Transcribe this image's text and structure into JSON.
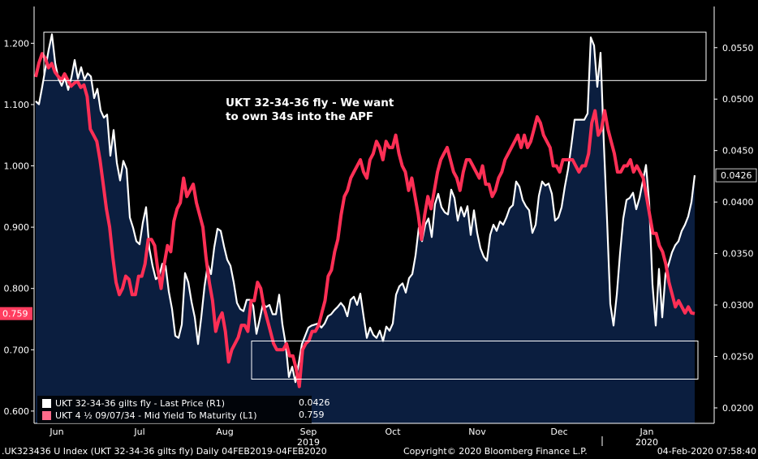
{
  "chart_data": {
    "type": "line",
    "title": "",
    "annotation": "UKT 32-34-36 fly - We want to own 34s into the APF",
    "annotation_lines": [
      "UKT 32-34-36 fly - We want",
      "to own 34s into the APF"
    ],
    "x_tick_labels": [
      "Jun",
      "Jul",
      "Aug",
      "Sep",
      "Oct",
      "Nov",
      "Dec",
      "Jan"
    ],
    "year_labels": [
      "2019",
      "2020"
    ],
    "left_axis": {
      "ylim": [
        0.58,
        1.26
      ],
      "ticks": [
        "0.600",
        "0.700",
        "0.800",
        "0.900",
        "1.000",
        "1.100",
        "1.200"
      ],
      "values": [
        0.6,
        0.7,
        0.8,
        0.9,
        1.0,
        1.1,
        1.2
      ]
    },
    "right_axis": {
      "ylim": [
        0.0185,
        0.059
      ],
      "ticks": [
        "0.0200",
        "0.0250",
        "0.0300",
        "0.0350",
        "0.0400",
        "0.0450",
        "0.0500",
        "0.0550"
      ],
      "values": [
        0.02,
        0.025,
        0.03,
        0.035,
        0.04,
        0.045,
        0.05,
        0.055
      ]
    },
    "series": [
      {
        "name": "UKT 32-34-36 gilts fly - Last Price (R1)",
        "axis": "right",
        "color": "#ffffff",
        "last_label": "0.0426",
        "values": [
          0.0498,
          0.0495,
          0.0512,
          0.053,
          0.0548,
          0.0563,
          0.0535,
          0.052,
          0.0513,
          0.0521,
          0.0509,
          0.0521,
          0.0538,
          0.052,
          0.0531,
          0.0519,
          0.0525,
          0.0522,
          0.0501,
          0.051,
          0.0489,
          0.0482,
          0.0485,
          0.0445,
          0.047,
          0.0438,
          0.0421,
          0.044,
          0.0432,
          0.0385,
          0.0375,
          0.0362,
          0.0359,
          0.038,
          0.0395,
          0.0355,
          0.0338,
          0.0325,
          0.0328,
          0.034,
          0.0338,
          0.0313,
          0.0296,
          0.027,
          0.0268,
          0.0281,
          0.0331,
          0.0322,
          0.0303,
          0.0288,
          0.0262,
          0.0288,
          0.0318,
          0.0339,
          0.033,
          0.0356,
          0.0374,
          0.0372,
          0.0357,
          0.0344,
          0.0338,
          0.0322,
          0.0302,
          0.0296,
          0.0294,
          0.0305,
          0.0305,
          0.0299,
          0.0272,
          0.0286,
          0.0301,
          0.0298,
          0.03,
          0.0291,
          0.0291,
          0.031,
          0.0281,
          0.0262,
          0.023,
          0.024,
          0.0225,
          0.0243,
          0.0262,
          0.027,
          0.0278,
          0.028,
          0.0281,
          0.0282,
          0.0278,
          0.0282,
          0.0289,
          0.0291,
          0.0295,
          0.0298,
          0.0302,
          0.0298,
          0.0289,
          0.0305,
          0.0308,
          0.03,
          0.0311,
          0.0289,
          0.0268,
          0.0278,
          0.0271,
          0.0268,
          0.0275,
          0.0265,
          0.0279,
          0.0275,
          0.0282,
          0.031,
          0.0318,
          0.0321,
          0.0312,
          0.0326,
          0.033,
          0.0348,
          0.0375,
          0.0362,
          0.0378,
          0.0384,
          0.0366,
          0.0398,
          0.0408,
          0.0395,
          0.039,
          0.0388,
          0.0412,
          0.0404,
          0.0382,
          0.0395,
          0.0386,
          0.0396,
          0.0368,
          0.0392,
          0.037,
          0.0355,
          0.0347,
          0.0343,
          0.0368,
          0.0378,
          0.0372,
          0.0381,
          0.0378,
          0.0385,
          0.0394,
          0.0397,
          0.042,
          0.0415,
          0.0402,
          0.0396,
          0.0392,
          0.037,
          0.0378,
          0.0406,
          0.042,
          0.0416,
          0.0418,
          0.0408,
          0.0382,
          0.0385,
          0.0395,
          0.0415,
          0.0432,
          0.0455,
          0.048,
          0.048,
          0.048,
          0.048,
          0.0486,
          0.056,
          0.0552,
          0.0512,
          0.0545,
          0.0458,
          0.0383,
          0.0301,
          0.028,
          0.031,
          0.035,
          0.0384,
          0.0402,
          0.0404,
          0.0409,
          0.0393,
          0.0404,
          0.042,
          0.0436,
          0.0398,
          0.032,
          0.028,
          0.0335,
          0.0288,
          0.033,
          0.034,
          0.0351,
          0.0358,
          0.0362,
          0.0372,
          0.0378,
          0.0386,
          0.04,
          0.0426
        ]
      },
      {
        "name": "UKT 4 ½ 09/07/34 - Mid Yield To Maturity (L1)",
        "axis": "left",
        "color": "#ff2f55",
        "last_label": "0.759",
        "values": [
          1.145,
          1.168,
          1.183,
          1.175,
          1.16,
          1.167,
          1.153,
          1.146,
          1.14,
          1.15,
          1.14,
          1.13,
          1.135,
          1.138,
          1.128,
          1.132,
          1.113,
          1.06,
          1.05,
          1.04,
          1.01,
          0.97,
          0.93,
          0.9,
          0.85,
          0.81,
          0.79,
          0.8,
          0.82,
          0.815,
          0.79,
          0.79,
          0.82,
          0.82,
          0.84,
          0.88,
          0.88,
          0.87,
          0.83,
          0.8,
          0.84,
          0.87,
          0.86,
          0.91,
          0.93,
          0.94,
          0.98,
          0.95,
          0.96,
          0.97,
          0.94,
          0.92,
          0.9,
          0.85,
          0.81,
          0.78,
          0.73,
          0.75,
          0.76,
          0.73,
          0.68,
          0.7,
          0.71,
          0.72,
          0.74,
          0.74,
          0.73,
          0.78,
          0.78,
          0.81,
          0.8,
          0.77,
          0.75,
          0.73,
          0.71,
          0.7,
          0.7,
          0.7,
          0.71,
          0.69,
          0.69,
          0.67,
          0.64,
          0.7,
          0.71,
          0.715,
          0.73,
          0.73,
          0.74,
          0.76,
          0.78,
          0.82,
          0.83,
          0.86,
          0.88,
          0.92,
          0.95,
          0.96,
          0.98,
          0.99,
          1.0,
          1.01,
          0.99,
          0.98,
          1.01,
          1.02,
          1.04,
          1.03,
          1.01,
          1.04,
          1.03,
          1.03,
          1.05,
          1.02,
          1.0,
          0.99,
          0.96,
          0.98,
          0.95,
          0.92,
          0.88,
          0.92,
          0.95,
          0.93,
          0.96,
          0.99,
          1.01,
          1.02,
          1.03,
          1.01,
          0.99,
          0.98,
          0.96,
          0.99,
          1.01,
          1.01,
          1.0,
          0.99,
          0.98,
          1.0,
          0.97,
          0.97,
          0.95,
          0.96,
          0.98,
          0.99,
          1.01,
          1.02,
          1.03,
          1.04,
          1.05,
          1.03,
          1.05,
          1.03,
          1.04,
          1.06,
          1.08,
          1.07,
          1.05,
          1.04,
          1.03,
          1.0,
          1.0,
          0.99,
          1.01,
          1.01,
          1.01,
          1.01,
          1.0,
          0.99,
          1.0,
          1.0,
          1.02,
          1.07,
          1.09,
          1.05,
          1.06,
          1.09,
          1.06,
          1.04,
          1.02,
          0.99,
          0.99,
          1.0,
          1.0,
          1.01,
          0.99,
          1.0,
          0.99,
          0.98,
          0.95,
          0.92,
          0.89,
          0.89,
          0.87,
          0.86,
          0.84,
          0.81,
          0.79,
          0.77,
          0.78,
          0.77,
          0.76,
          0.77,
          0.76,
          0.759
        ]
      }
    ],
    "highlight_boxes": [
      {
        "label": "top",
        "x_frac": [
          0.0,
          1.0
        ],
        "range_right": [
          0.0518,
          0.0565
        ]
      },
      {
        "label": "bottom",
        "x_frac": [
          0.33,
          1.0
        ],
        "range_right": [
          0.0228,
          0.0265
        ]
      }
    ],
    "area_fill_series": 0,
    "area_color": "#0b1e3f",
    "legend_placement": "bottom-left",
    "grid": false
  },
  "legend": {
    "entries": [
      {
        "label": "UKT 32-34-36 gilts fly - Last Price (R1)",
        "value": "0.0426",
        "color": "#ffffff"
      },
      {
        "label": "UKT 4 ½ 09/07/34 - Mid Yield To Maturity (L1)",
        "value": "0.759",
        "color": "#ff6b8a"
      }
    ]
  },
  "footer": {
    "left": ".UK323436 U Index (UKT 32-34-36 gilts fly)  Daily 04FEB2019-04FEB2020",
    "center": "Copyright© 2020 Bloomberg Finance L.P.",
    "right": "04-Feb-2020 07:58:40"
  }
}
